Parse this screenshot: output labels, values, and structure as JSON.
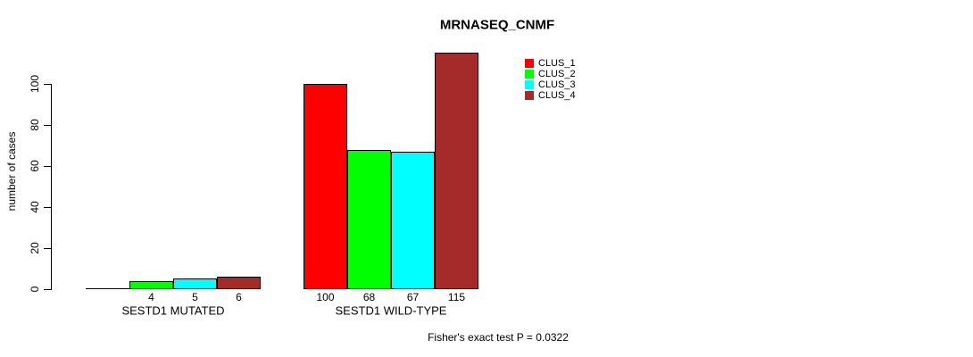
{
  "page": {
    "background": "#FFFFFF",
    "text_color": "#000000",
    "axis_color": "#000000"
  },
  "chart_data": {
    "type": "bar",
    "title": "MRNASEQ_CNMF",
    "ylabel": "number of cases",
    "xlabel": "",
    "ylim": [
      0,
      115
    ],
    "yticks": [
      0,
      20,
      40,
      60,
      80,
      100
    ],
    "grid": false,
    "legend_position": "top-right",
    "categories": [
      "SESTD1 MUTATED",
      "SESTD1 WILD-TYPE"
    ],
    "series": [
      {
        "name": "CLUS_1",
        "color": "#FF0000",
        "values": [
          0,
          100
        ]
      },
      {
        "name": "CLUS_2",
        "color": "#00FF00",
        "values": [
          4,
          68
        ]
      },
      {
        "name": "CLUS_3",
        "color": "#00FFFF",
        "values": [
          5,
          67
        ]
      },
      {
        "name": "CLUS_4",
        "color": "#A52A2A",
        "values": [
          6,
          115
        ]
      }
    ],
    "bar_value_labels": [
      [
        "",
        "4",
        "5",
        "6"
      ],
      [
        "100",
        "68",
        "67",
        "115"
      ]
    ],
    "annotation": "Fisher's exact test P = 0.0322"
  }
}
